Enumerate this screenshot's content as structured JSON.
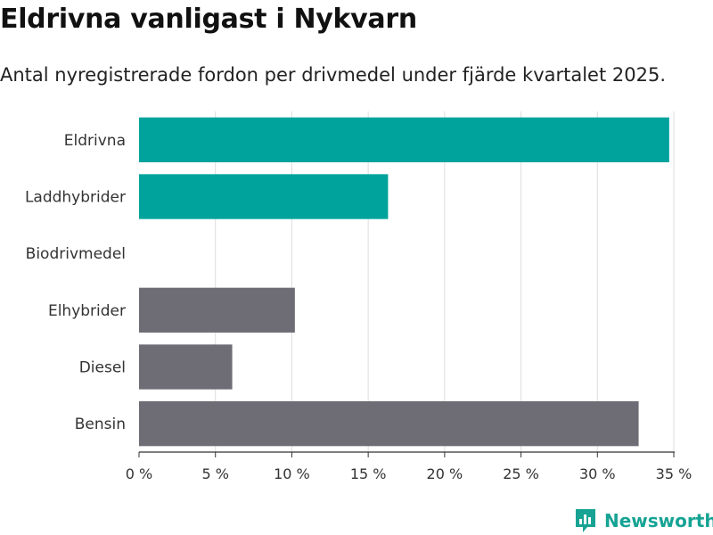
{
  "title": "Eldrivna vanligast i Nykvarn",
  "subtitle": "Antal nyregistrerade fordon per drivmedel under fjärde kvartalet 2025.",
  "brand": "Newsworthy",
  "colors": {
    "highlight": "#00a39b",
    "default": "#6e6d75",
    "grid": "#dddddd",
    "axis": "#333333",
    "brand": "#16a394"
  },
  "chart_data": {
    "type": "bar",
    "orientation": "horizontal",
    "categories": [
      "Eldrivna",
      "Laddhybrider",
      "Biodrivmedel",
      "Elhybrider",
      "Diesel",
      "Bensin"
    ],
    "values": [
      34.7,
      16.3,
      0,
      10.2,
      6.1,
      32.7
    ],
    "highlight": [
      true,
      true,
      false,
      false,
      false,
      false
    ],
    "xlim": [
      0,
      35
    ],
    "xticks": [
      0,
      5,
      10,
      15,
      20,
      25,
      30,
      35
    ],
    "xtick_labels": [
      "0 %",
      "5 %",
      "10 %",
      "15 %",
      "20 %",
      "25 %",
      "30 %",
      "35 %"
    ],
    "xlabel": "",
    "ylabel": "",
    "grid": true,
    "unit": "%"
  }
}
